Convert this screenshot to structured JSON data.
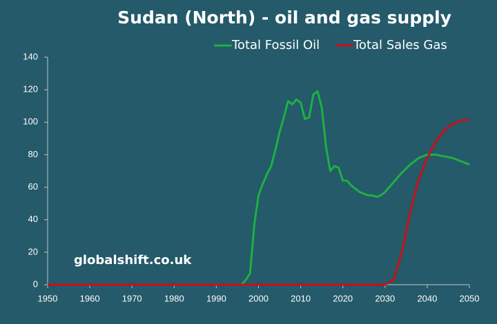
{
  "chart_data": {
    "type": "line",
    "title": "Sudan (North) - oil and gas supply",
    "annotation": "globalshift.co.uk",
    "x": [
      1950,
      1996,
      1997,
      1998,
      1999,
      2000,
      2001,
      2002,
      2003,
      2004,
      2005,
      2006,
      2007,
      2008,
      2009,
      2010,
      2011,
      2012,
      2013,
      2014,
      2015,
      2016,
      2017,
      2018,
      2019,
      2020,
      2021,
      2022,
      2024,
      2026,
      2027,
      2028,
      2029,
      2030,
      2032,
      2034,
      2036,
      2038,
      2040,
      2042,
      2044,
      2046,
      2048,
      2050
    ],
    "series": [
      {
        "name": "Total Fossil Oil",
        "color": "#1db045",
        "values": [
          0,
          0,
          3,
          7,
          37,
          55,
          62,
          68,
          73,
          83,
          94,
          103,
          113,
          111,
          114,
          112,
          102,
          103,
          117,
          119,
          109,
          85,
          70,
          73,
          72,
          64,
          64,
          61,
          57,
          55,
          55,
          54,
          55,
          57,
          63,
          69,
          74,
          78,
          80,
          80,
          79,
          78,
          76,
          74
        ]
      },
      {
        "name": "Total Sales Gas",
        "color": "#c8101a",
        "values": [
          0,
          0,
          0,
          0,
          0,
          0,
          0,
          0,
          0,
          0,
          0,
          0,
          0,
          0,
          0,
          0,
          0,
          0,
          0,
          0,
          0,
          0,
          0,
          0,
          0,
          0,
          0,
          0,
          0,
          0,
          0,
          0,
          0,
          0,
          3,
          20,
          45,
          65,
          78,
          88,
          95,
          99,
          101,
          102
        ]
      }
    ],
    "xlim": [
      1950,
      2050
    ],
    "xticks": [
      1950,
      1960,
      1970,
      1980,
      1990,
      2000,
      2010,
      2020,
      2030,
      2040,
      2050
    ],
    "ylim": [
      0,
      140
    ],
    "yticks": [
      0,
      20,
      40,
      60,
      80,
      100,
      120,
      140
    ],
    "grid": false
  }
}
